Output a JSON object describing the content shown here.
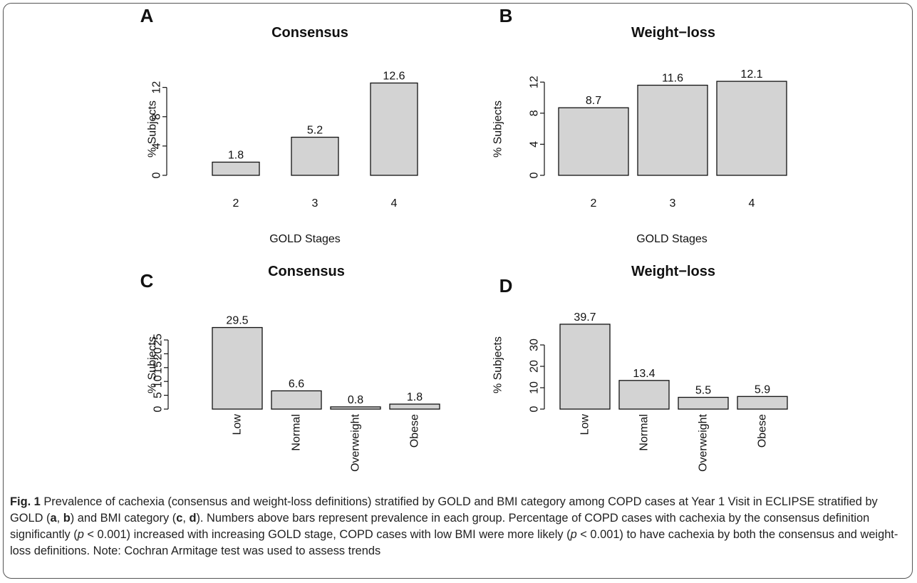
{
  "chart_data": [
    {
      "panel": "A",
      "type": "bar",
      "title": "Consensus",
      "categories": [
        "2",
        "3",
        "4"
      ],
      "values": [
        1.8,
        5.2,
        12.6
      ],
      "value_labels": [
        "1.8",
        "5.2",
        "12.6"
      ],
      "xlabel": "GOLD Stages",
      "ylabel": "% Subjects",
      "yticks": [
        0,
        4,
        8,
        12
      ],
      "ylim": [
        0,
        12.6
      ],
      "x_tick_rotation": "horizontal",
      "grid": false
    },
    {
      "panel": "B",
      "type": "bar",
      "title": "Weight−loss",
      "categories": [
        "2",
        "3",
        "4"
      ],
      "values": [
        8.7,
        11.6,
        12.1
      ],
      "value_labels": [
        "8.7",
        "11.6",
        "12.1"
      ],
      "xlabel": "GOLD Stages",
      "ylabel": "% Subjects",
      "yticks": [
        0,
        4,
        8,
        12
      ],
      "ylim": [
        0,
        12.1
      ],
      "x_tick_rotation": "horizontal",
      "grid": false
    },
    {
      "panel": "C",
      "type": "bar",
      "title": "Consensus",
      "categories": [
        "Low",
        "Normal",
        "Overweight",
        "Obese"
      ],
      "values": [
        29.5,
        6.6,
        0.8,
        1.8
      ],
      "value_labels": [
        "29.5",
        "6.6",
        "0.8",
        "1.8"
      ],
      "xlabel": "",
      "ylabel": "% Subjects",
      "yticks": [
        0,
        5,
        10,
        15,
        20,
        25
      ],
      "ylim": [
        0,
        29.5
      ],
      "x_tick_rotation": "vertical",
      "grid": false
    },
    {
      "panel": "D",
      "type": "bar",
      "title": "Weight−loss",
      "categories": [
        "Low",
        "Normal",
        "Overweight",
        "Obese"
      ],
      "values": [
        39.7,
        13.4,
        5.5,
        5.9
      ],
      "value_labels": [
        "39.7",
        "13.4",
        "5.5",
        "5.9"
      ],
      "xlabel": "",
      "ylabel": "% Subjects",
      "yticks": [
        0,
        10,
        20,
        30
      ],
      "ylim": [
        0,
        39.7
      ],
      "x_tick_rotation": "vertical",
      "grid": false
    }
  ],
  "caption": {
    "label": "Fig. 1",
    "segments": [
      {
        "text": " Prevalence of cachexia (consensus and weight-loss definitions) stratified by GOLD and BMI category among COPD cases at Year 1 Visit in ECLIPSE stratified by GOLD (",
        "style": "normal"
      },
      {
        "text": "a",
        "style": "bold"
      },
      {
        "text": ", ",
        "style": "normal"
      },
      {
        "text": "b",
        "style": "bold"
      },
      {
        "text": ") and BMI category (",
        "style": "normal"
      },
      {
        "text": "c",
        "style": "bold"
      },
      {
        "text": ", ",
        "style": "normal"
      },
      {
        "text": "d",
        "style": "bold"
      },
      {
        "text": "). Numbers above bars represent prevalence in each group. Percentage of COPD cases with cachexia by the consensus definition significantly (",
        "style": "normal"
      },
      {
        "text": "p",
        "style": "italic"
      },
      {
        "text": " < 0.001) increased with increasing GOLD stage, COPD cases with low BMI were more likely (",
        "style": "normal"
      },
      {
        "text": "p",
        "style": "italic"
      },
      {
        "text": " < 0.001) to have cachexia by both the consensus and weight-loss definitions. Note: Cochran Armitage test was used to assess trends",
        "style": "normal"
      }
    ]
  }
}
